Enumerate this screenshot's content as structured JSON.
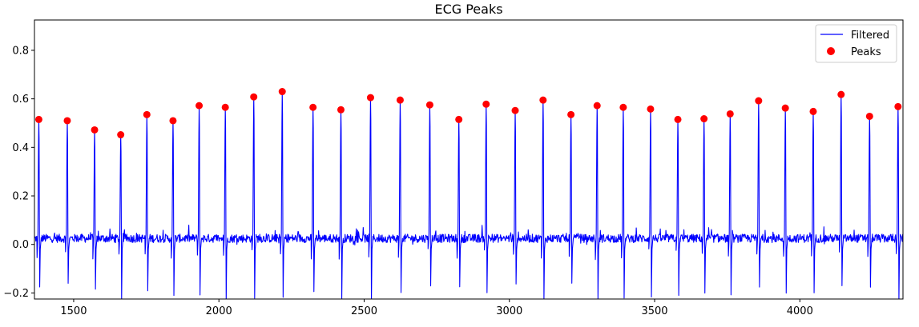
{
  "chart_data": {
    "type": "line",
    "title": "ECG Peaks",
    "xlabel": "",
    "ylabel": "",
    "xlim": [
      1365,
      4355
    ],
    "ylim": [
      -0.225,
      0.925
    ],
    "x_ticks": [
      1500,
      2000,
      2500,
      3000,
      3500,
      4000
    ],
    "y_ticks": [
      -0.2,
      0.0,
      0.2,
      0.4,
      0.6,
      0.8
    ],
    "x_tick_labels": [
      "1500",
      "2000",
      "2500",
      "3000",
      "3500",
      "4000"
    ],
    "y_tick_labels": [
      "−0.2",
      "0.0",
      "0.2",
      "0.4",
      "0.6",
      "0.8"
    ],
    "grid": false,
    "legend": {
      "position": "top-right",
      "entries": [
        "Filtered",
        "Peaks"
      ]
    },
    "series": [
      {
        "name": "Filtered",
        "kind": "line",
        "color": "#0000ff",
        "baseline": 0.025
      },
      {
        "name": "Peaks",
        "kind": "scatter",
        "color": "#ff0000",
        "points": [
          [
            1380,
            0.515
          ],
          [
            1478,
            0.51
          ],
          [
            1572,
            0.472
          ],
          [
            1662,
            0.452
          ],
          [
            1752,
            0.535
          ],
          [
            1842,
            0.51
          ],
          [
            1932,
            0.572
          ],
          [
            2022,
            0.565
          ],
          [
            2120,
            0.608
          ],
          [
            2218,
            0.63
          ],
          [
            2324,
            0.565
          ],
          [
            2420,
            0.555
          ],
          [
            2522,
            0.605
          ],
          [
            2624,
            0.595
          ],
          [
            2726,
            0.575
          ],
          [
            2826,
            0.515
          ],
          [
            2920,
            0.578
          ],
          [
            3020,
            0.552
          ],
          [
            3116,
            0.595
          ],
          [
            3212,
            0.535
          ],
          [
            3302,
            0.572
          ],
          [
            3392,
            0.565
          ],
          [
            3486,
            0.558
          ],
          [
            3580,
            0.515
          ],
          [
            3670,
            0.518
          ],
          [
            3760,
            0.538
          ],
          [
            3858,
            0.592
          ],
          [
            3950,
            0.562
          ],
          [
            4046,
            0.548
          ],
          [
            4142,
            0.618
          ],
          [
            4240,
            0.528
          ],
          [
            4338,
            0.568
          ]
        ]
      }
    ]
  }
}
